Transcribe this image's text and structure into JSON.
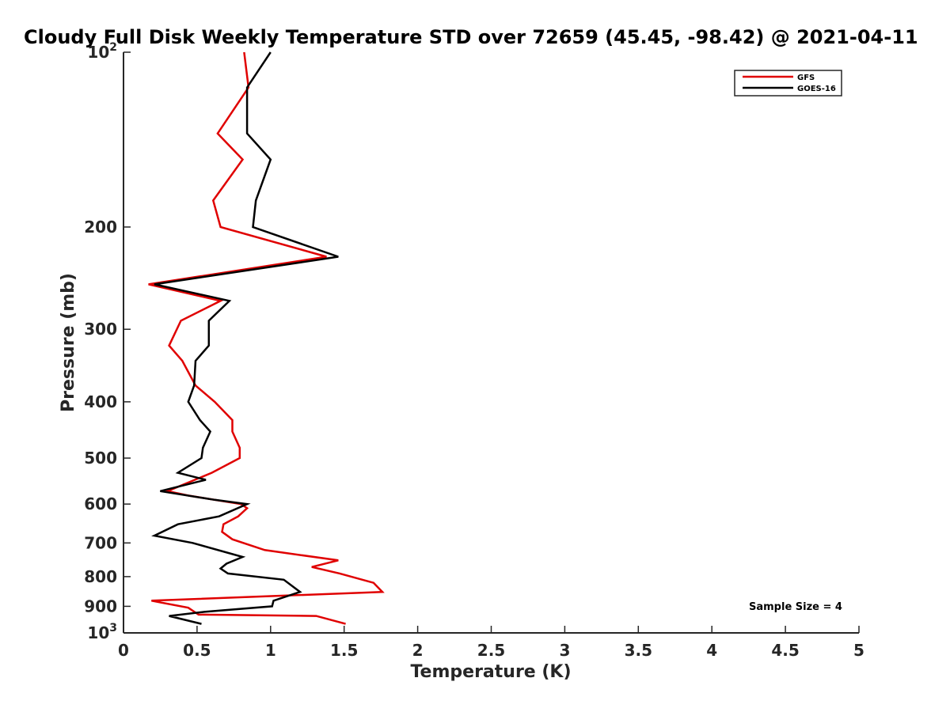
{
  "chart_data": {
    "type": "line",
    "title": "Cloudy Full Disk Weekly Temperature STD over 72659 (45.45, -98.42) @ 2021-04-11",
    "xlabel": "Temperature (K)",
    "ylabel": "Pressure (mb)",
    "xlim": [
      0,
      5
    ],
    "ylim": [
      100,
      1000
    ],
    "y_scale": "log",
    "y_reversed": true,
    "grid": false,
    "legend_position": "top-right",
    "x_ticks": [
      "0",
      "0.5",
      "1",
      "1.5",
      "2",
      "2.5",
      "3",
      "3.5",
      "4",
      "4.5",
      "5"
    ],
    "y_ticks": [
      {
        "value": 100,
        "base": "10",
        "exp": "2",
        "label": ""
      },
      {
        "value": 200,
        "label": "200"
      },
      {
        "value": 300,
        "label": "300"
      },
      {
        "value": 400,
        "label": "400"
      },
      {
        "value": 500,
        "label": "500"
      },
      {
        "value": 600,
        "label": "600"
      },
      {
        "value": 700,
        "label": "700"
      },
      {
        "value": 800,
        "label": "800"
      },
      {
        "value": 900,
        "label": "900"
      },
      {
        "value": 1000,
        "base": "10",
        "exp": "3",
        "label": ""
      }
    ],
    "annotation": "Sample Size = 4",
    "series": [
      {
        "name": "GFS",
        "color": "#e00000",
        "x": [
          0.82,
          0.85,
          0.64,
          0.81,
          0.61,
          0.66,
          1.38,
          0.17,
          0.66,
          0.39,
          0.31,
          0.4,
          0.49,
          0.62,
          0.74,
          0.74,
          0.79,
          0.79,
          0.6,
          0.3,
          0.44,
          0.8,
          0.84,
          0.78,
          0.68,
          0.67,
          0.74,
          0.96,
          1.46,
          1.28,
          1.47,
          1.7,
          1.76,
          0.19,
          0.44,
          0.51,
          1.31,
          1.51
        ],
        "y": [
          100,
          115,
          138,
          153,
          180,
          200,
          225,
          251,
          268,
          290,
          320,
          340,
          375,
          400,
          430,
          450,
          480,
          500,
          530,
          570,
          580,
          600,
          610,
          630,
          650,
          670,
          690,
          720,
          750,
          770,
          790,
          820,
          850,
          880,
          905,
          930,
          935,
          965
        ]
      },
      {
        "name": "GOES-16",
        "color": "#000000",
        "x": [
          1.0,
          0.84,
          0.84,
          1.0,
          0.9,
          0.88,
          1.46,
          0.21,
          0.72,
          0.58,
          0.58,
          0.49,
          0.48,
          0.44,
          0.52,
          0.59,
          0.54,
          0.53,
          0.37,
          0.56,
          0.25,
          0.62,
          0.84,
          0.65,
          0.37,
          0.21,
          0.47,
          0.81,
          0.7,
          0.66,
          0.71,
          1.09,
          1.2,
          1.02,
          1.01,
          0.55,
          0.31,
          0.53
        ],
        "y": [
          100,
          115,
          138,
          153,
          180,
          200,
          225,
          251,
          268,
          290,
          320,
          340,
          375,
          400,
          430,
          450,
          480,
          500,
          530,
          545,
          570,
          590,
          600,
          630,
          650,
          680,
          700,
          740,
          760,
          775,
          790,
          810,
          850,
          880,
          900,
          920,
          935,
          965
        ]
      }
    ]
  }
}
